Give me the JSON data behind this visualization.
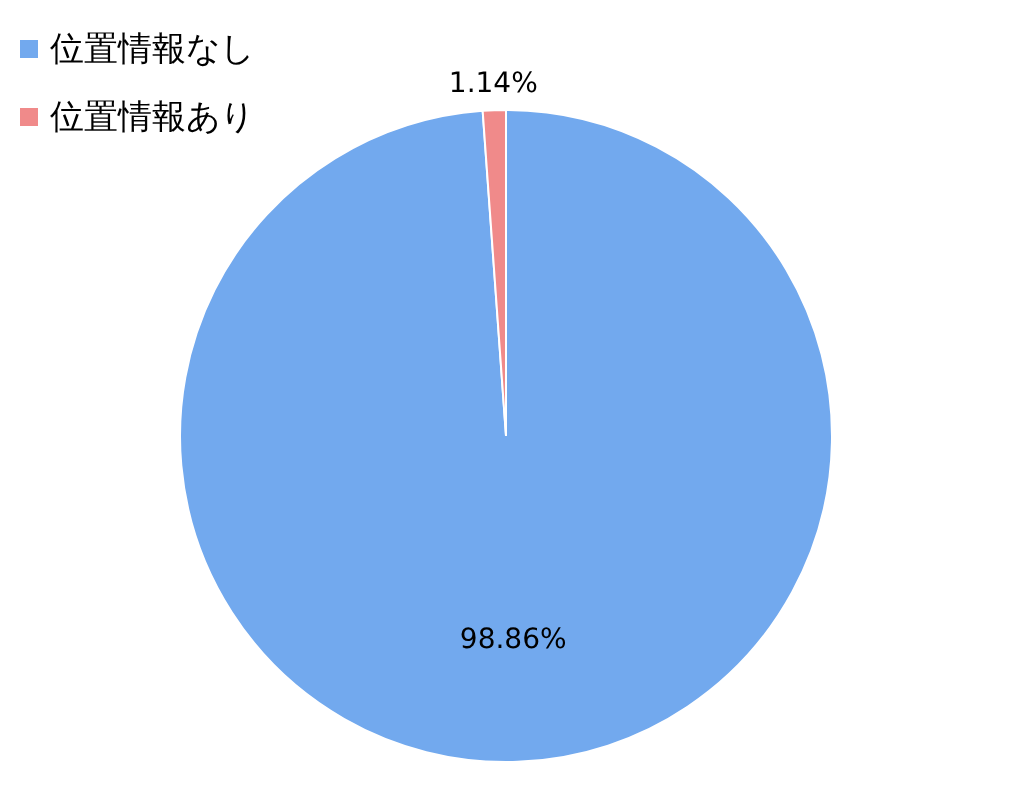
{
  "chart_data": {
    "type": "pie",
    "categories": [
      "位置情報なし",
      "位置情報あり"
    ],
    "values": [
      98.86,
      1.14
    ],
    "colors": [
      "#72a9ee",
      "#f08a8a"
    ],
    "value_labels": [
      "98.86%",
      "1.14%"
    ],
    "legend": "top left"
  }
}
